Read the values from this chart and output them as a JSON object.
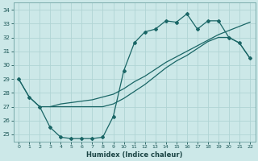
{
  "xlabel": "Humidex (Indice chaleur)",
  "background_color": "#cce8e8",
  "grid_color": "#b0d4d4",
  "line_color": "#1a6666",
  "xlim": [
    -0.5,
    22.5
  ],
  "ylim": [
    24.5,
    34.5
  ],
  "yticks": [
    25,
    26,
    27,
    28,
    29,
    30,
    31,
    32,
    33,
    34
  ],
  "xticks": [
    0,
    1,
    2,
    3,
    4,
    5,
    6,
    7,
    8,
    9,
    10,
    11,
    12,
    13,
    14,
    15,
    16,
    17,
    18,
    19,
    20,
    21,
    22
  ],
  "line1_x": [
    0,
    1,
    2,
    3,
    4,
    5,
    6,
    7,
    8,
    9,
    10,
    11,
    12,
    13,
    14,
    15,
    16,
    17,
    18,
    19,
    20,
    21,
    22
  ],
  "line1_y": [
    29.0,
    27.7,
    27.0,
    25.5,
    24.8,
    24.7,
    24.7,
    24.7,
    24.8,
    26.3,
    29.6,
    31.6,
    32.4,
    32.6,
    33.2,
    33.1,
    33.7,
    32.6,
    33.2,
    33.2,
    32.0,
    31.6,
    30.5
  ],
  "line2_x": [
    3,
    4,
    5,
    6,
    7,
    8,
    9,
    10,
    11,
    12,
    13,
    14,
    15,
    16,
    17,
    18,
    19,
    20,
    21,
    22
  ],
  "line2_y": [
    27.0,
    27.2,
    27.3,
    27.4,
    27.5,
    27.7,
    27.9,
    28.3,
    28.8,
    29.2,
    29.7,
    30.2,
    30.6,
    31.0,
    31.4,
    31.8,
    32.2,
    32.5,
    32.8,
    33.1
  ],
  "line3_x": [
    0,
    1,
    2,
    3,
    4,
    5,
    6,
    7,
    8,
    9,
    10,
    11,
    12,
    13,
    14,
    15,
    16,
    17,
    18,
    19,
    20,
    21,
    22
  ],
  "line3_y": [
    29.0,
    27.7,
    27.0,
    27.0,
    27.0,
    27.0,
    27.0,
    27.0,
    27.0,
    27.2,
    27.6,
    28.1,
    28.6,
    29.2,
    29.8,
    30.3,
    30.7,
    31.2,
    31.7,
    32.0,
    32.0,
    31.6,
    30.5
  ]
}
